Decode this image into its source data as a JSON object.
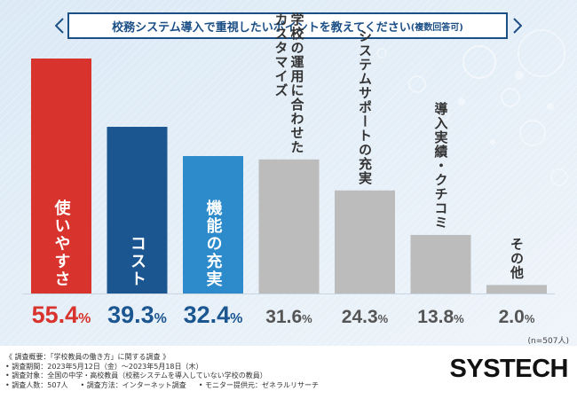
{
  "title": {
    "main": "校務システム導入で重視したいポイントを教えてください",
    "suffix": "(複数回答可)"
  },
  "colors": {
    "accent": "#1b4f86",
    "red": "#d8332d",
    "navy": "#1c5691",
    "blue": "#2d8bcb",
    "gray": "#bcbcbc",
    "pct_red": "#d8332d",
    "pct_blue": "#1c5691",
    "pct_gray": "#555555"
  },
  "chart_data": {
    "type": "bar",
    "categories": [
      "使いやすさ",
      "コスト",
      "機能の充実",
      "学校の運用に合わせたカスタマイズ",
      "システムサポートの充実",
      "導入実績・クチコミ",
      "その他"
    ],
    "values": [
      55.4,
      39.3,
      32.4,
      31.6,
      24.3,
      13.8,
      2.0
    ],
    "value_labels": [
      "55.4%",
      "39.3%",
      "32.4%",
      "31.6%",
      "24.3%",
      "13.8%",
      "2.0%"
    ],
    "bar_colors": [
      "#d8332d",
      "#1c5691",
      "#2d8bcb",
      "#bcbcbc",
      "#bcbcbc",
      "#bcbcbc",
      "#bcbcbc"
    ],
    "label_columns": [
      [
        "使いやすさ"
      ],
      [
        "コスト"
      ],
      [
        "機能の充実"
      ],
      [
        "学校の運用に合わせた",
        "カスタマイズ"
      ],
      [
        "システムサポートの充実"
      ],
      [
        "導入実績・クチコミ"
      ],
      [
        "その他"
      ]
    ],
    "label_inside": [
      true,
      true,
      true,
      false,
      false,
      false,
      false
    ],
    "ylim": [
      0,
      60
    ],
    "grid": false,
    "legend": "none"
  },
  "sample_size": "(n=507人)",
  "notes": {
    "overview": "《 調査概要：「学校教員の働き方」に関する調査 》",
    "period": "• 調査期間：2023年5月12日（金）〜2023年5月18日（木）",
    "target": "• 調査対象：全国の中学・高校教員（校務システムを導入していない学校の教員）",
    "respondents": "• 調査人数：507人",
    "method": "• 調査方法：インターネット調査",
    "monitor": "• モニター提供元：ゼネラルリサーチ"
  },
  "logo": "SYSTECH"
}
